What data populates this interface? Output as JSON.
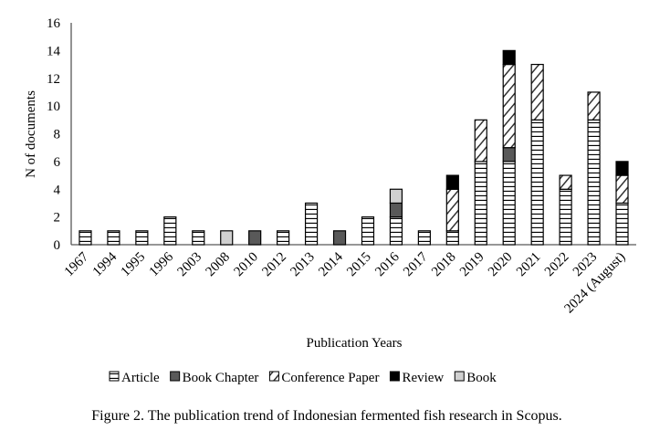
{
  "chart_data": {
    "type": "bar",
    "stacked": true,
    "xlabel": "Publication Years",
    "ylabel": "N of documents",
    "ylim": [
      0,
      16
    ],
    "yticks": [
      0,
      2,
      4,
      6,
      8,
      10,
      12,
      14,
      16
    ],
    "grid": false,
    "legend_position": "bottom",
    "categories": [
      "1967",
      "1994",
      "1995",
      "1996",
      "2003",
      "2008",
      "2010",
      "2012",
      "2013",
      "2014",
      "2015",
      "2016",
      "2017",
      "2018",
      "2019",
      "2020",
      "2021",
      "2022",
      "2023",
      "2024 (August)"
    ],
    "series": [
      {
        "name": "Article",
        "pattern": "horizontal-stripes",
        "color": "#ffffff",
        "values": [
          1,
          1,
          1,
          2,
          1,
          0,
          0,
          1,
          3,
          0,
          2,
          2,
          1,
          1,
          6,
          6,
          9,
          4,
          9,
          3
        ]
      },
      {
        "name": "Book Chapter",
        "pattern": "solid",
        "color": "#595959",
        "values": [
          0,
          0,
          0,
          0,
          0,
          0,
          1,
          0,
          0,
          1,
          0,
          1,
          0,
          0,
          0,
          1,
          0,
          0,
          0,
          0
        ]
      },
      {
        "name": "Conference Paper",
        "pattern": "diagonal-stripes",
        "color": "#ffffff",
        "values": [
          0,
          0,
          0,
          0,
          0,
          0,
          0,
          0,
          0,
          0,
          0,
          0,
          0,
          3,
          3,
          6,
          4,
          1,
          2,
          2
        ]
      },
      {
        "name": "Review",
        "pattern": "solid",
        "color": "#000000",
        "values": [
          0,
          0,
          0,
          0,
          0,
          0,
          0,
          0,
          0,
          0,
          0,
          0,
          0,
          1,
          0,
          1,
          0,
          0,
          0,
          1
        ]
      },
      {
        "name": "Book",
        "pattern": "solid",
        "color": "#d0d0d0",
        "values": [
          0,
          0,
          0,
          0,
          0,
          1,
          0,
          0,
          0,
          0,
          0,
          1,
          0,
          0,
          0,
          0,
          0,
          0,
          0,
          0
        ]
      }
    ]
  },
  "caption": "Figure 2.  The publication trend of Indonesian fermented fish research in Scopus."
}
